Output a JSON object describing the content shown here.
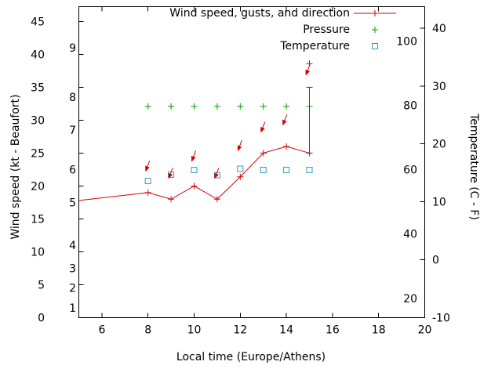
{
  "chart_data": {
    "type": "line",
    "title": "",
    "xlabel": "Local time (Europe/Athens)",
    "ylabel_left": "Wind speed (kt - Beaufort)",
    "ylabel_right": "Temperature (C - F)",
    "xlim": [
      5,
      20
    ],
    "x_ticks": [
      6,
      8,
      10,
      12,
      14,
      16,
      18,
      20
    ],
    "left_axis": {
      "unit": "kt",
      "ticks": [
        0,
        5,
        10,
        15,
        20,
        25,
        30,
        35,
        40,
        45
      ],
      "lim": [
        0,
        47.25
      ],
      "beaufort_labels": [
        {
          "label": "1",
          "kt": 1.5
        },
        {
          "label": "2",
          "kt": 4.5
        },
        {
          "label": "3",
          "kt": 7.5
        },
        {
          "label": "4",
          "kt": 11
        },
        {
          "label": "5",
          "kt": 17.5
        },
        {
          "label": "6",
          "kt": 22.5
        },
        {
          "label": "7",
          "kt": 28.5
        },
        {
          "label": "8",
          "kt": 33.5
        },
        {
          "label": "9",
          "kt": 41
        }
      ]
    },
    "right_axis": {
      "unit": "C",
      "ticks": [
        -10,
        0,
        10,
        20,
        30,
        40
      ],
      "lim": [
        -10,
        43.7
      ],
      "fahrenheit_labels": [
        20,
        40,
        60,
        80,
        100
      ]
    },
    "legend_position": "top-center-inside",
    "grid": false,
    "series": [
      {
        "name": "Wind speed, gusts, and direction",
        "color": "#d40000",
        "marker": "plus",
        "x": [
          5,
          8,
          9,
          10,
          11,
          12,
          13,
          14,
          15
        ],
        "y_kt": [
          17.8,
          19,
          18,
          20,
          18,
          21.4,
          25,
          26,
          25
        ],
        "gust_errorbar": {
          "x": 15,
          "low_kt": 25,
          "high_kt": 35
        },
        "gust_point": {
          "x": 15,
          "y_kt": 38.6
        },
        "direction_arrows": [
          {
            "x": 7.9,
            "y_kt": 22.3
          },
          {
            "x": 8.9,
            "y_kt": 21.2
          },
          {
            "x": 9.9,
            "y_kt": 23.8
          },
          {
            "x": 10.9,
            "y_kt": 21.2
          },
          {
            "x": 11.9,
            "y_kt": 25.4
          },
          {
            "x": 12.9,
            "y_kt": 28.2
          },
          {
            "x": 13.85,
            "y_kt": 29.3
          },
          {
            "x": 14.85,
            "y_kt": 36.9
          }
        ]
      },
      {
        "name": "Pressure",
        "color": "#00a000",
        "marker": "plus",
        "x": [
          8,
          9,
          10,
          11,
          12,
          13,
          14,
          15
        ],
        "y_kt_scale": [
          32.1,
          32.1,
          32.1,
          32.1,
          32.1,
          32.1,
          32.1,
          32.1
        ]
      },
      {
        "name": "Temperature",
        "color": "#3399cc",
        "marker": "open-square",
        "x": [
          8,
          9,
          10,
          11,
          12,
          13,
          14,
          15
        ],
        "y_c": [
          13.6,
          14.7,
          15.5,
          14.6,
          15.7,
          15.5,
          15.5,
          15.5
        ]
      }
    ]
  }
}
